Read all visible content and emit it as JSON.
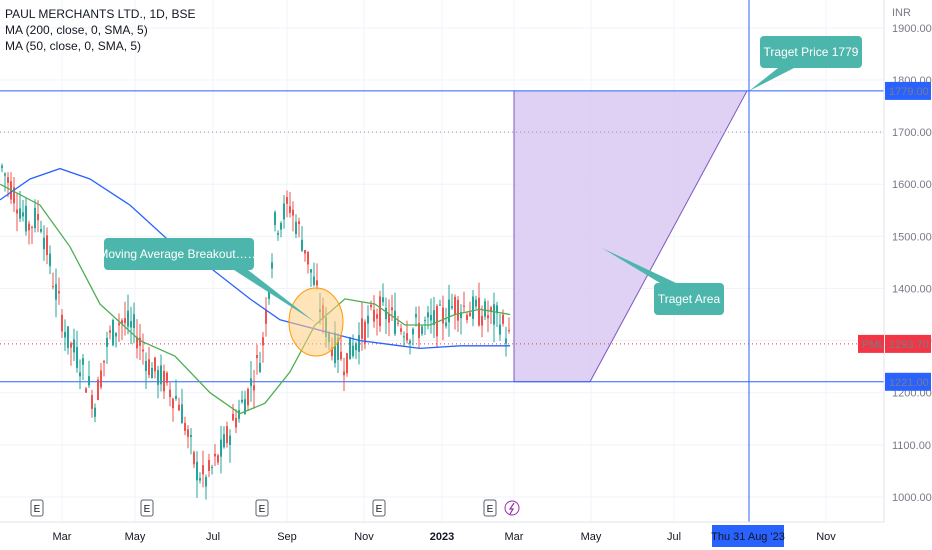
{
  "header": {
    "title": "PAUL MERCHANTS LTD., 1D, BSE",
    "ma200": "MA (200, close, 0, SMA, 5)",
    "ma50": "MA (50, close, 0, SMA, 5)"
  },
  "colors": {
    "up": "#26a69a",
    "down": "#ef5350",
    "ma200": "#2962ff",
    "ma50": "#4caf50",
    "level_line": "#2962ff",
    "target_fill": "#d9c9f2",
    "target_edge": "#7e57c2",
    "callout": "#4db6ac",
    "current_price": "#f23645"
  },
  "chart_data": {
    "type": "candlestick",
    "currency": "INR",
    "ylim": [
      965,
      1935
    ],
    "y_ticks": [
      "1900.00",
      "1800.00",
      "1700.00",
      "1600.00",
      "1500.00",
      "1400.00",
      "1300.00",
      "1200.00",
      "1100.00",
      "1000.00"
    ],
    "x_ticks": [
      "Mar",
      "May",
      "Jul",
      "Sep",
      "Nov",
      "2023",
      "Mar",
      "May",
      "Jul",
      "Nov"
    ],
    "crosshair_date": "Thu 31 Aug '23",
    "levels": [
      {
        "price": 1779,
        "label": "1779.00"
      },
      {
        "price": 1221,
        "label": "1221.00"
      }
    ],
    "dotted_level": 1700,
    "current_price": {
      "symbol": "PML",
      "value": "1293.70",
      "price": 1293.7
    },
    "earnings_markers": [
      "E",
      "E",
      "E",
      "E",
      "E"
    ],
    "callouts": [
      {
        "text": "Traget Price 1779"
      },
      {
        "text": "Moving Average Breakout……"
      },
      {
        "text": "Traget Area"
      }
    ]
  }
}
